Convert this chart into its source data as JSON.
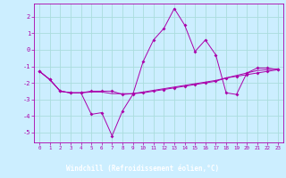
{
  "xlabel": "Windchill (Refroidissement éolien,°C)",
  "bg_color": "#cceeff",
  "grid_color": "#aadddd",
  "line_color": "#aa00aa",
  "spine_color": "#aa00aa",
  "xlabel_bg": "#aa00aa",
  "xlabel_fg": "#ffffff",
  "x_hours": [
    0,
    1,
    2,
    3,
    4,
    5,
    6,
    7,
    8,
    9,
    10,
    11,
    12,
    13,
    14,
    15,
    16,
    17,
    18,
    19,
    20,
    21,
    22,
    23
  ],
  "series1": [
    -1.3,
    -1.8,
    -2.5,
    -2.6,
    -2.6,
    -3.9,
    -3.8,
    -5.2,
    -3.7,
    -2.7,
    -0.7,
    0.6,
    1.3,
    2.5,
    1.5,
    -0.1,
    0.6,
    -0.3,
    -2.6,
    -2.7,
    -1.4,
    -1.1,
    -1.1,
    -1.2
  ],
  "series2": [
    -1.3,
    -1.8,
    -2.5,
    -2.6,
    -2.6,
    -2.5,
    -2.5,
    -2.5,
    -2.7,
    -2.65,
    -2.6,
    -2.5,
    -2.4,
    -2.3,
    -2.2,
    -2.1,
    -2.0,
    -1.9,
    -1.7,
    -1.6,
    -1.5,
    -1.4,
    -1.3,
    -1.2
  ],
  "series3": [
    -1.3,
    -1.8,
    -2.5,
    -2.6,
    -2.6,
    -2.55,
    -2.55,
    -2.65,
    -2.65,
    -2.65,
    -2.55,
    -2.45,
    -2.35,
    -2.25,
    -2.15,
    -2.05,
    -1.95,
    -1.85,
    -1.7,
    -1.55,
    -1.4,
    -1.25,
    -1.2,
    -1.15
  ],
  "ylim": [
    -5.6,
    2.8
  ],
  "yticks": [
    -5,
    -4,
    -3,
    -2,
    -1,
    0,
    1,
    2
  ],
  "xlim": [
    -0.5,
    23.5
  ]
}
